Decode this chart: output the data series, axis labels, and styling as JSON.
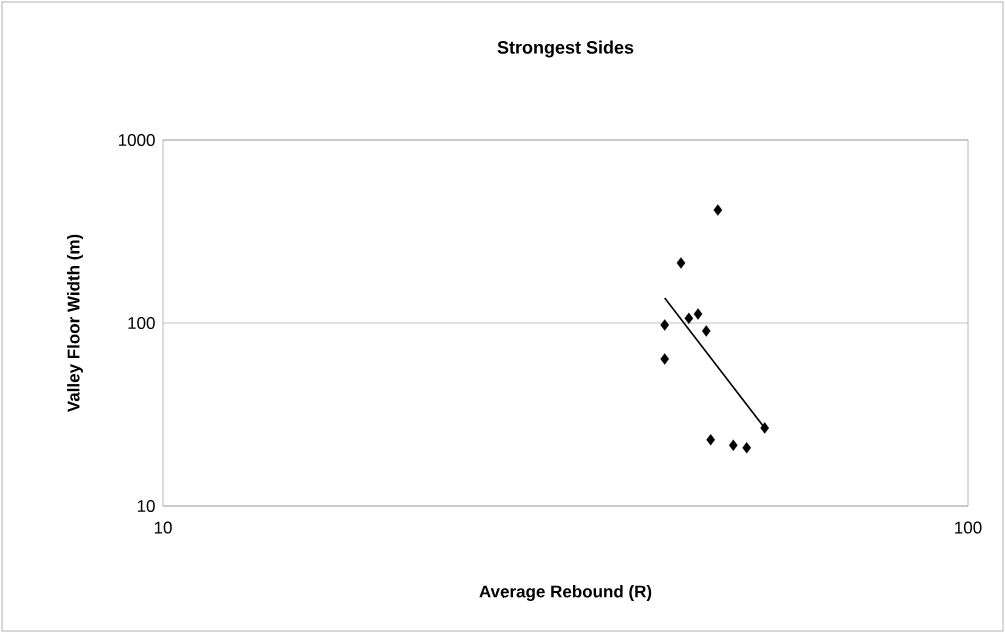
{
  "chart_data": {
    "type": "scatter",
    "title": "Strongest Sides",
    "xlabel": "Average Rebound (R)",
    "ylabel": "Valley Floor Width (m)",
    "log": "xy",
    "grid": "y",
    "xlim": [
      10,
      100
    ],
    "ylim": [
      10,
      1000
    ],
    "xticks": [
      10,
      100
    ],
    "yticks": [
      10,
      100,
      1000
    ],
    "series": [
      {
        "color": "#000000",
        "marker": "diamond",
        "x": [
          48.9,
          44.0,
          42.0,
          42.0,
          45.0,
          46.2,
          47.3,
          47.9,
          51.1,
          53.1,
          55.9
        ],
        "values": [
          414,
          213,
          97.5,
          63.6,
          106,
          112,
          90.5,
          23.0,
          21.5,
          20.8,
          26.7
        ]
      },
      {
        "type": "line",
        "color": "#000000",
        "marker": "none",
        "line_style": "solid",
        "x": [
          42.0,
          55.9
        ],
        "values": [
          137,
          26.7
        ]
      }
    ]
  }
}
